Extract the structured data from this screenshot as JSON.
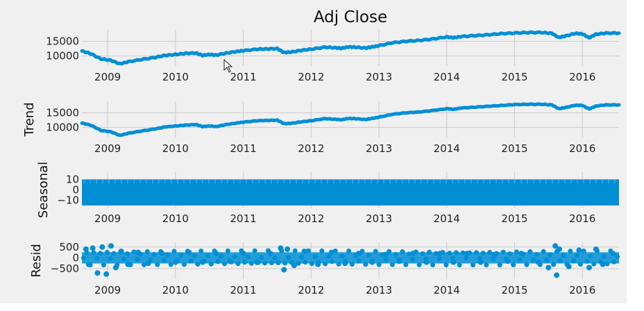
{
  "colors": {
    "line": "#008fd5",
    "background": "#f0f0f0",
    "grid": "#cbcbcb"
  },
  "chart_data": [
    {
      "type": "line",
      "title": "Adj Close",
      "ylabel": "",
      "x_ticks": [
        "2009",
        "2010",
        "2011",
        "2012",
        "2013",
        "2014",
        "2015",
        "2016"
      ],
      "y_ticks": [
        "10000",
        "15000"
      ],
      "xlim": [
        2008.62,
        2016.54
      ],
      "ylim": [
        6600,
        18900
      ],
      "series": [
        {
          "x": [
            2008.62,
            2008.75,
            2008.9,
            2009.05,
            2009.18,
            2009.3,
            2009.5,
            2009.7,
            2009.85,
            2010.0,
            2010.15,
            2010.3,
            2010.4,
            2010.5,
            2010.6,
            2010.75,
            2010.9,
            2011.0,
            2011.2,
            2011.35,
            2011.5,
            2011.6,
            2011.7,
            2011.85,
            2012.0,
            2012.2,
            2012.35,
            2012.45,
            2012.55,
            2012.65,
            2012.8,
            2012.9,
            2013.0,
            2013.2,
            2013.4,
            2013.6,
            2013.8,
            2014.0,
            2014.1,
            2014.2,
            2014.4,
            2014.6,
            2014.8,
            2015.0,
            2015.2,
            2015.4,
            2015.55,
            2015.65,
            2015.75,
            2015.9,
            2016.0,
            2016.1,
            2016.2,
            2016.35,
            2016.54
          ],
          "y": [
            11700,
            10800,
            9000,
            8500,
            7300,
            8000,
            8800,
            9500,
            10200,
            10500,
            10900,
            11000,
            10200,
            10500,
            10300,
            11000,
            11500,
            11800,
            12300,
            12400,
            12500,
            11200,
            11300,
            11900,
            12300,
            13000,
            12800,
            12600,
            13100,
            13000,
            12700,
            13100,
            13500,
            14500,
            15000,
            15300,
            15800,
            16500,
            16200,
            16600,
            16900,
            17200,
            17600,
            17800,
            18000,
            18000,
            17700,
            16300,
            16800,
            17700,
            17500,
            16200,
            17400,
            17800,
            17800
          ]
        }
      ]
    },
    {
      "type": "line",
      "title": "",
      "ylabel": "Trend",
      "x_ticks": [
        "2009",
        "2010",
        "2011",
        "2012",
        "2013",
        "2014",
        "2015",
        "2016"
      ],
      "y_ticks": [
        "10000",
        "15000"
      ],
      "xlim": [
        2008.62,
        2016.54
      ],
      "ylim": [
        6600,
        18900
      ],
      "series": [
        {
          "x": [
            2008.62,
            2008.75,
            2008.9,
            2009.05,
            2009.18,
            2009.3,
            2009.5,
            2009.7,
            2009.85,
            2010.0,
            2010.15,
            2010.3,
            2010.4,
            2010.5,
            2010.6,
            2010.75,
            2010.9,
            2011.0,
            2011.2,
            2011.35,
            2011.5,
            2011.6,
            2011.7,
            2011.85,
            2012.0,
            2012.2,
            2012.35,
            2012.45,
            2012.55,
            2012.65,
            2012.8,
            2012.9,
            2013.0,
            2013.2,
            2013.4,
            2013.6,
            2013.8,
            2014.0,
            2014.1,
            2014.2,
            2014.4,
            2014.6,
            2014.8,
            2015.0,
            2015.2,
            2015.4,
            2015.55,
            2015.65,
            2015.75,
            2015.9,
            2016.0,
            2016.1,
            2016.2,
            2016.35,
            2016.54
          ],
          "y": [
            11500,
            10800,
            9000,
            8500,
            7300,
            8000,
            8800,
            9500,
            10200,
            10500,
            10800,
            11000,
            10300,
            10500,
            10300,
            11000,
            11500,
            11800,
            12300,
            12400,
            12500,
            11300,
            11400,
            11900,
            12300,
            13000,
            12800,
            12600,
            13100,
            13000,
            12700,
            13100,
            13500,
            14500,
            15000,
            15300,
            15800,
            16400,
            16200,
            16600,
            16900,
            17200,
            17500,
            17800,
            17900,
            17900,
            17700,
            16400,
            16800,
            17600,
            17500,
            16300,
            17300,
            17700,
            17700
          ]
        }
      ]
    },
    {
      "type": "area",
      "title": "",
      "ylabel": "Seasonal",
      "x_ticks": [
        "2009",
        "2010",
        "2011",
        "2012",
        "2013",
        "2014",
        "2015",
        "2016"
      ],
      "y_ticks": [
        "10",
        "0",
        "−10"
      ],
      "xlim": [
        2008.62,
        2016.54
      ],
      "ylim": [
        -17,
        17
      ],
      "series": [
        {
          "name": "",
          "min": -15,
          "max": 10
        }
      ]
    },
    {
      "type": "scatter",
      "title": "",
      "ylabel": "Resid",
      "x_ticks": [
        "2009",
        "2010",
        "2011",
        "2012",
        "2013",
        "2014",
        "2015",
        "2016"
      ],
      "y_ticks": [
        "500",
        "0",
        "−500"
      ],
      "xlim": [
        2008.62,
        2016.54
      ],
      "ylim": [
        -980,
        720
      ],
      "series": [
        {
          "x": [
            2008.68,
            2008.72,
            2008.78,
            2008.85,
            2008.92,
            2008.98,
            2009.05,
            2009.12,
            2009.2,
            2009.3,
            2009.45,
            2009.6,
            2009.8,
            2010.0,
            2010.2,
            2010.4,
            2010.6,
            2010.8,
            2011.0,
            2011.2,
            2011.4,
            2011.55,
            2011.6,
            2011.65,
            2011.75,
            2011.9,
            2012.1,
            2012.3,
            2012.5,
            2012.7,
            2012.9,
            2013.1,
            2013.3,
            2013.5,
            2013.7,
            2013.9,
            2014.1,
            2014.3,
            2014.5,
            2014.7,
            2014.9,
            2015.1,
            2015.35,
            2015.5,
            2015.6,
            2015.62,
            2015.66,
            2015.8,
            2015.95,
            2016.1,
            2016.2,
            2016.3,
            2016.45
          ],
          "y": [
            400,
            -300,
            450,
            -700,
            500,
            -750,
            550,
            -450,
            300,
            -300,
            250,
            -250,
            200,
            -200,
            250,
            -200,
            200,
            -150,
            200,
            -200,
            200,
            450,
            -550,
            400,
            -350,
            300,
            -300,
            250,
            -250,
            200,
            -200,
            150,
            -150,
            200,
            -200,
            200,
            -200,
            200,
            -200,
            150,
            -150,
            200,
            -200,
            -450,
            550,
            -800,
            400,
            -400,
            350,
            -450,
            400,
            -300,
            200
          ]
        }
      ]
    }
  ]
}
